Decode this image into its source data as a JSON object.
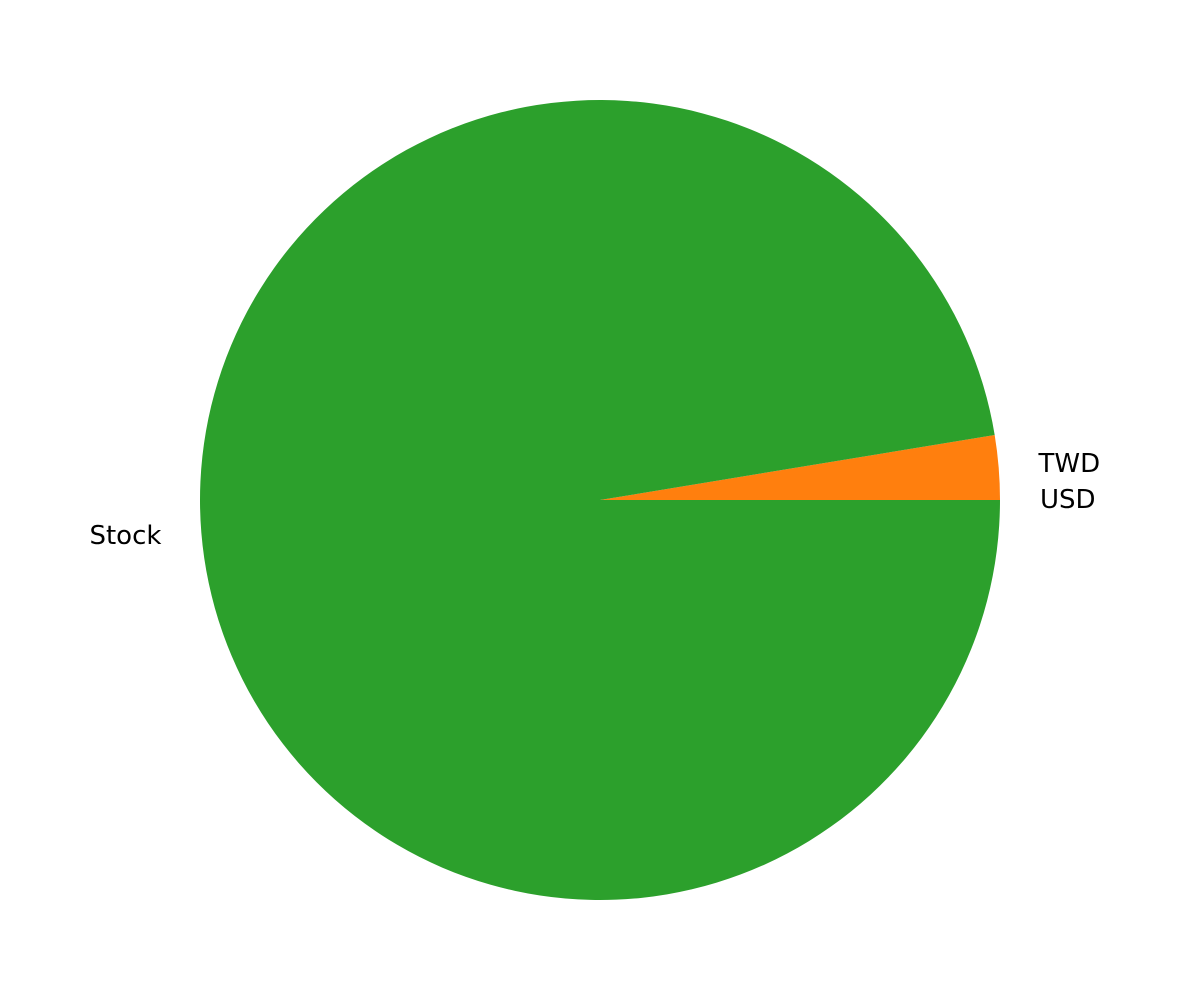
{
  "chart_data": {
    "type": "pie",
    "title": "",
    "slices": [
      {
        "label": "USD",
        "value": 0.0,
        "color": "#1f77b4"
      },
      {
        "label": "TWD",
        "value": 2.6,
        "color": "#ff7f0e"
      },
      {
        "label": "Stock",
        "value": 97.4,
        "color": "#2ca02c"
      }
    ],
    "start_angle_deg": 0,
    "direction": "counterclockwise",
    "legend": "none"
  }
}
